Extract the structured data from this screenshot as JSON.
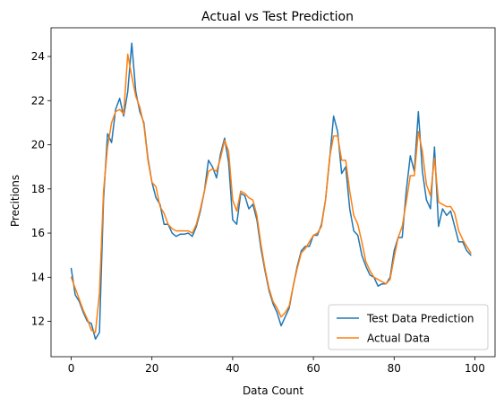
{
  "chart_data": {
    "type": "line",
    "title": "Actual vs Test Prediction",
    "xlabel": "Data Count",
    "ylabel": "Precitions",
    "xlim": [
      -5,
      105
    ],
    "ylim": [
      10.4,
      25.3
    ],
    "xticks": [
      0,
      20,
      40,
      60,
      80,
      100
    ],
    "yticks": [
      12,
      14,
      16,
      18,
      20,
      22,
      24
    ],
    "grid": false,
    "legend_position": "lower right",
    "series": [
      {
        "name": "Test Data Prediction",
        "color": "#1f77b4",
        "values": [
          14.4,
          13.2,
          12.9,
          12.4,
          12.0,
          11.9,
          11.2,
          11.5,
          17.5,
          20.5,
          20.1,
          21.6,
          22.1,
          21.3,
          22.4,
          24.6,
          22.4,
          21.5,
          21.0,
          19.4,
          18.3,
          17.6,
          17.3,
          16.4,
          16.4,
          16.0,
          15.85,
          15.95,
          15.95,
          16.0,
          15.85,
          16.3,
          17.0,
          17.9,
          19.3,
          19.0,
          18.5,
          19.6,
          20.3,
          19.2,
          16.6,
          16.4,
          17.8,
          17.7,
          17.1,
          17.3,
          16.6,
          15.3,
          14.3,
          13.4,
          12.8,
          12.4,
          11.8,
          12.2,
          12.6,
          13.6,
          14.5,
          15.2,
          15.4,
          15.4,
          15.9,
          15.9,
          16.4,
          17.5,
          19.3,
          21.3,
          20.6,
          18.7,
          19.0,
          17.1,
          16.1,
          15.9,
          15.0,
          14.5,
          14.1,
          14.0,
          13.6,
          13.7,
          13.7,
          14.0,
          15.2,
          15.8,
          15.8,
          17.9,
          19.5,
          18.8,
          21.5,
          18.8,
          17.5,
          17.1,
          19.9,
          16.3,
          17.1,
          16.8,
          17.0,
          16.3,
          15.6,
          15.6,
          15.2,
          15.0
        ]
      },
      {
        "name": "Actual Data",
        "color": "#ff7f0e",
        "values": [
          14.0,
          13.5,
          13.0,
          12.5,
          12.1,
          11.6,
          11.5,
          13.3,
          17.9,
          19.9,
          21.0,
          21.5,
          21.6,
          21.4,
          24.1,
          23.1,
          22.2,
          21.7,
          20.9,
          19.3,
          18.3,
          18.1,
          17.2,
          16.9,
          16.4,
          16.2,
          16.1,
          16.1,
          16.1,
          16.1,
          16.0,
          16.4,
          17.1,
          17.9,
          18.8,
          18.9,
          18.8,
          19.4,
          20.2,
          19.7,
          17.5,
          17.0,
          17.9,
          17.8,
          17.6,
          17.5,
          16.8,
          15.5,
          14.4,
          13.5,
          12.9,
          12.6,
          12.2,
          12.4,
          12.7,
          13.6,
          14.4,
          15.1,
          15.3,
          15.6,
          15.9,
          16.0,
          16.3,
          17.5,
          19.4,
          20.4,
          20.4,
          19.3,
          19.3,
          17.9,
          16.8,
          16.4,
          15.6,
          14.7,
          14.3,
          14.0,
          13.9,
          13.8,
          13.7,
          13.9,
          14.9,
          15.8,
          16.3,
          17.4,
          18.6,
          18.6,
          20.6,
          19.7,
          18.2,
          17.7,
          19.4,
          17.4,
          17.3,
          17.2,
          17.2,
          16.9,
          16.1,
          15.7,
          15.4,
          15.1
        ]
      }
    ]
  }
}
